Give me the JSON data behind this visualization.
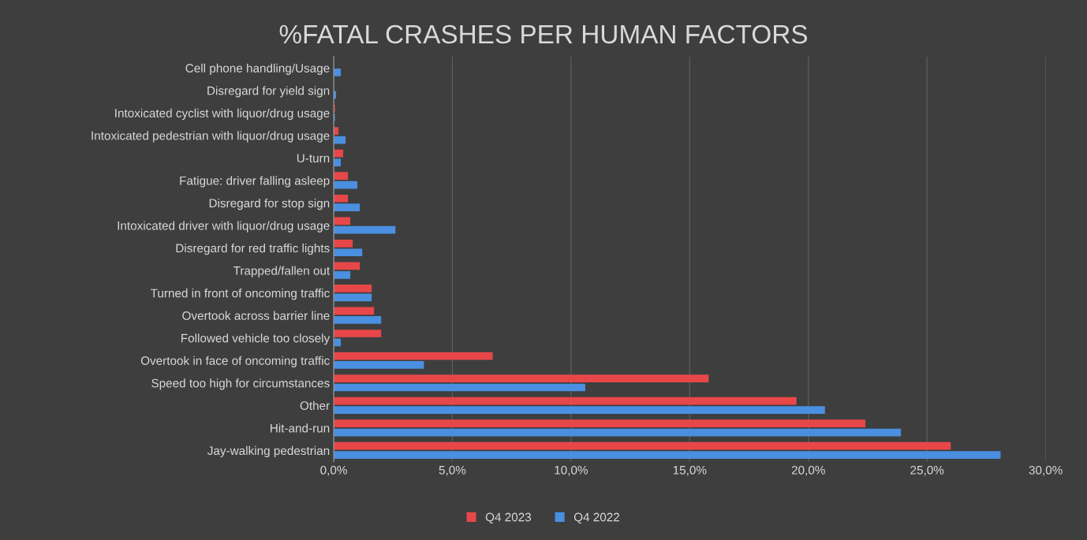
{
  "chart_data": {
    "type": "bar",
    "orientation": "horizontal",
    "title": "%FATAL CRASHES PER HUMAN FACTORS",
    "categories": [
      "Cell phone handling/Usage",
      "Disregard for yield sign",
      "Intoxicated cyclist with liquor/drug usage",
      "Intoxicated pedestrian with liquor/drug usage",
      "U-turn",
      "Fatigue: driver falling asleep",
      "Disregard for stop sign",
      "Intoxicated driver with liquor/drug usage",
      "Disregard for red traffic lights",
      "Trapped/fallen out",
      "Turned in front of oncoming traffic",
      "Overtook across barrier line",
      "Followed vehicle too closely",
      "Overtook in face of oncoming traffic",
      "Speed too high for circumstances",
      "Other",
      "Hit-and-run",
      "Jay-walking pedestrian"
    ],
    "series": [
      {
        "name": "Q4 2023",
        "color": "#e8474a",
        "values": [
          0.0,
          0.0,
          0.05,
          0.2,
          0.4,
          0.6,
          0.6,
          0.7,
          0.8,
          1.1,
          1.6,
          1.7,
          2.0,
          6.7,
          15.8,
          19.5,
          22.4,
          26.0
        ]
      },
      {
        "name": "Q4 2022",
        "color": "#4a8fe0",
        "values": [
          0.3,
          0.1,
          0.05,
          0.5,
          0.3,
          1.0,
          1.1,
          2.6,
          1.2,
          0.7,
          1.6,
          2.0,
          0.3,
          3.8,
          10.6,
          20.7,
          23.9,
          28.1
        ]
      }
    ],
    "xlim": [
      0,
      30
    ],
    "xticks": [
      {
        "value": 0,
        "label": "0,0%"
      },
      {
        "value": 5,
        "label": "5,0%"
      },
      {
        "value": 10,
        "label": "10,0%"
      },
      {
        "value": 15,
        "label": "15,0%"
      },
      {
        "value": 20,
        "label": "20,0%"
      },
      {
        "value": 25,
        "label": "25,0%"
      },
      {
        "value": 30,
        "label": "30,0%"
      }
    ],
    "grid": "x",
    "legend": "bottom"
  }
}
